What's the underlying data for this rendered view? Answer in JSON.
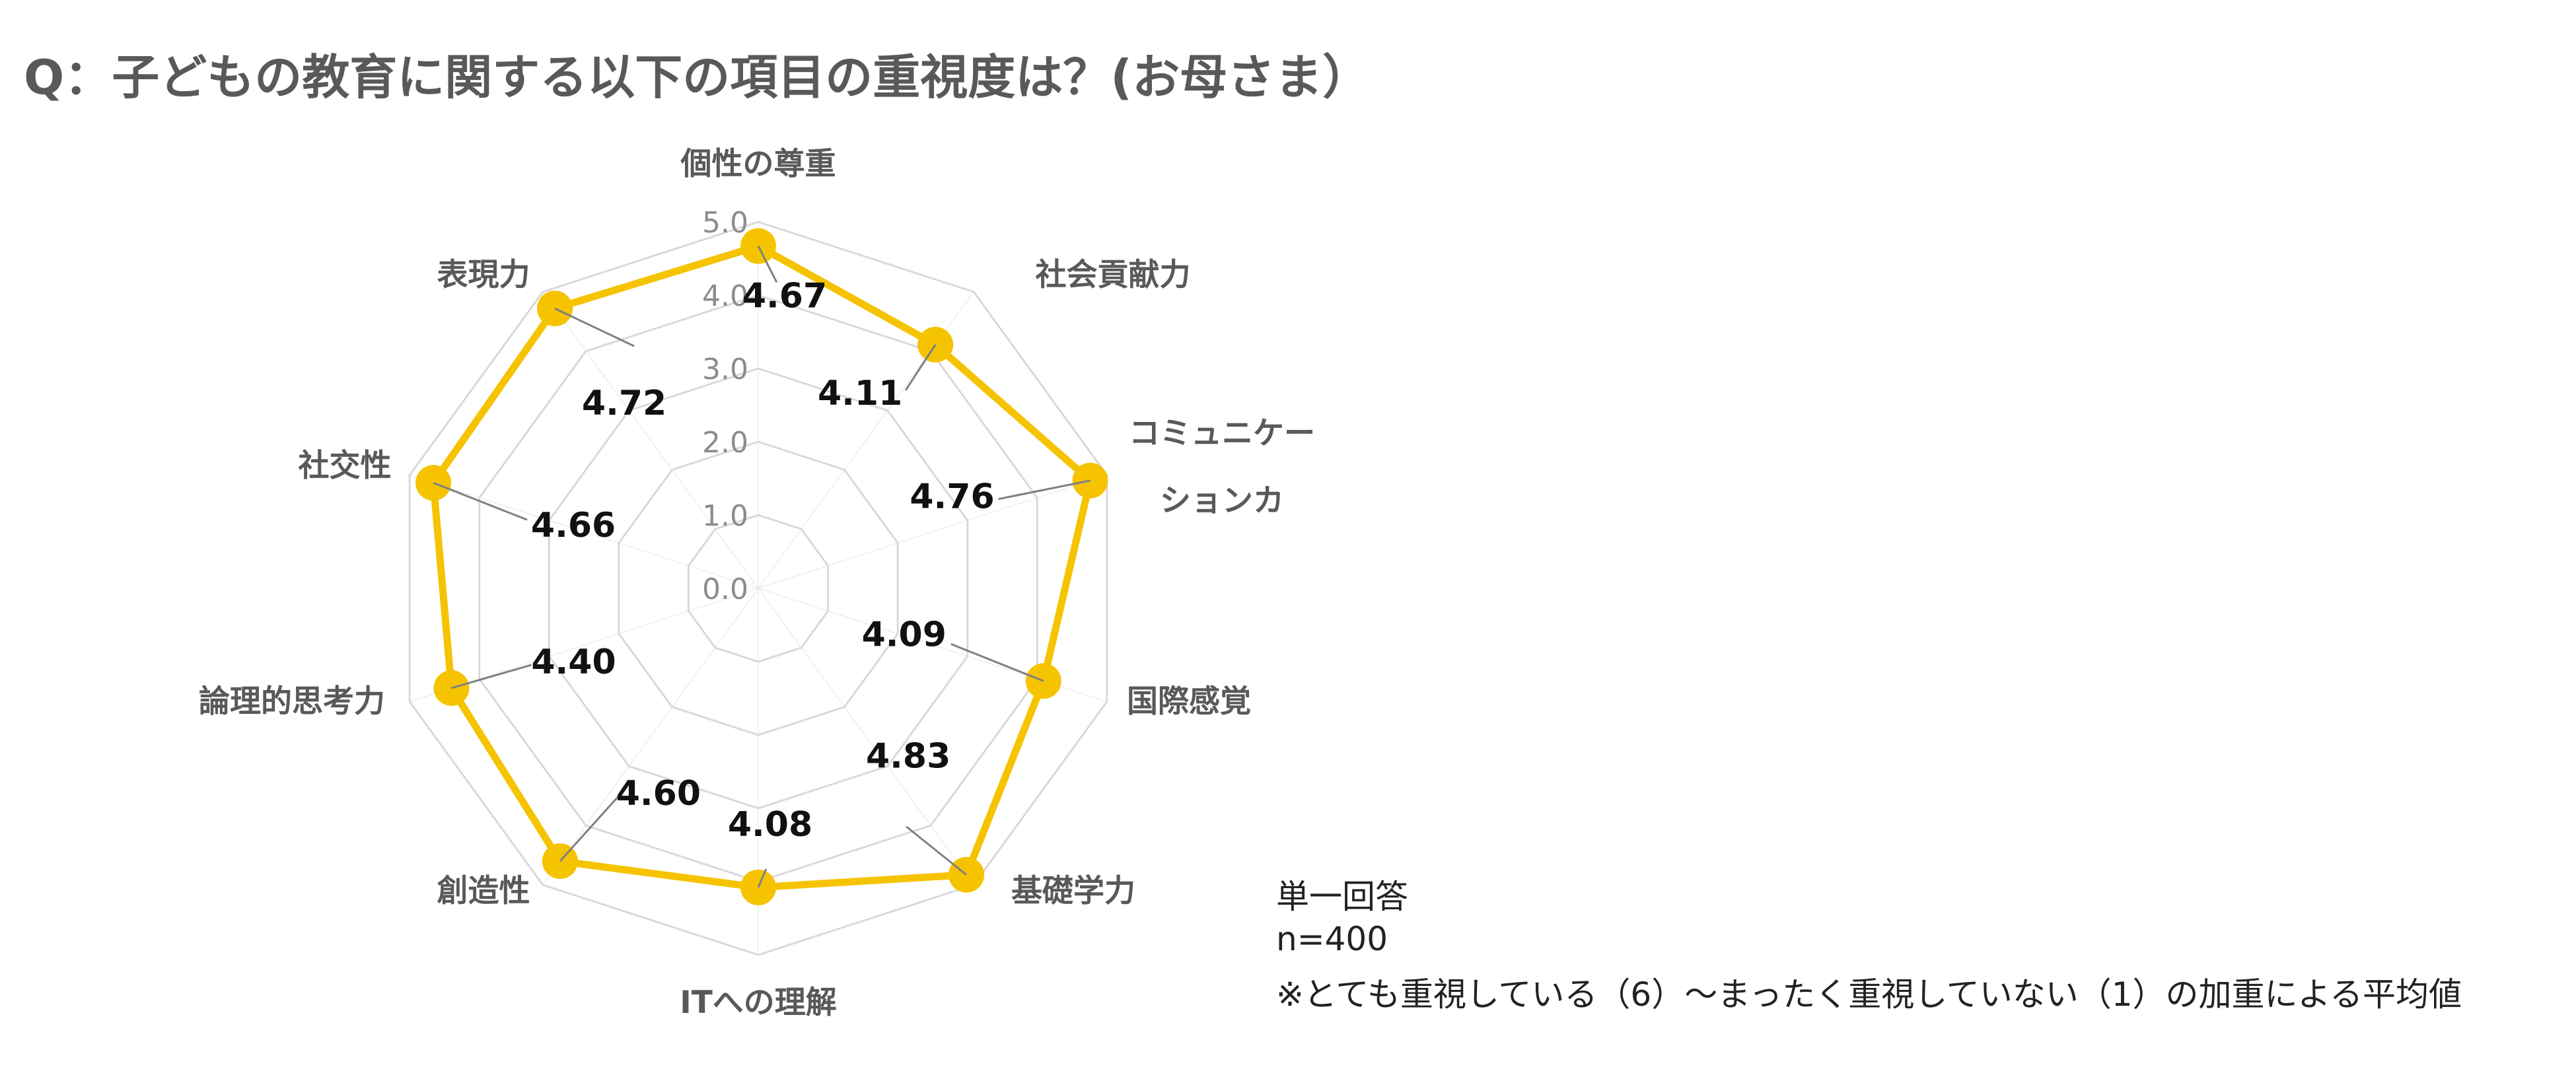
{
  "title": "Q：子どもの教育に関する以下の項目の重視度は？(お母さま）",
  "colors": {
    "series": "#F5C300",
    "grid": "#d9d9d9",
    "leader": "#808080"
  },
  "chart_data": {
    "type": "radar",
    "categories": [
      [
        "個性の尊重"
      ],
      [
        "社会貢献力"
      ],
      [
        "コミュニケー",
        "ションカ"
      ],
      [
        "国際感覚"
      ],
      [
        "基礎学力"
      ],
      [
        "ITへの理解"
      ],
      [
        "創造性"
      ],
      [
        "論理的思考力"
      ],
      [
        "社交性"
      ],
      [
        "表現力"
      ]
    ],
    "values": [
      4.67,
      4.11,
      4.76,
      4.09,
      4.83,
      4.08,
      4.6,
      4.4,
      4.66,
      4.72
    ],
    "value_labels": [
      "4.67",
      "4.11",
      "4.76",
      "4.09",
      "4.83",
      "4.08",
      "4.60",
      "4.40",
      "4.66",
      "4.72"
    ],
    "rlim": [
      0,
      5
    ],
    "ticks": [
      "0.0",
      "1.0",
      "2.0",
      "3.0",
      "4.0",
      "5.0"
    ],
    "grid": true,
    "legend": "none"
  },
  "notes": {
    "line1": "単一回答",
    "line2": "n=400",
    "line3": "※とても重視している（6）～まったく重視していない（1）の加重による平均値"
  }
}
